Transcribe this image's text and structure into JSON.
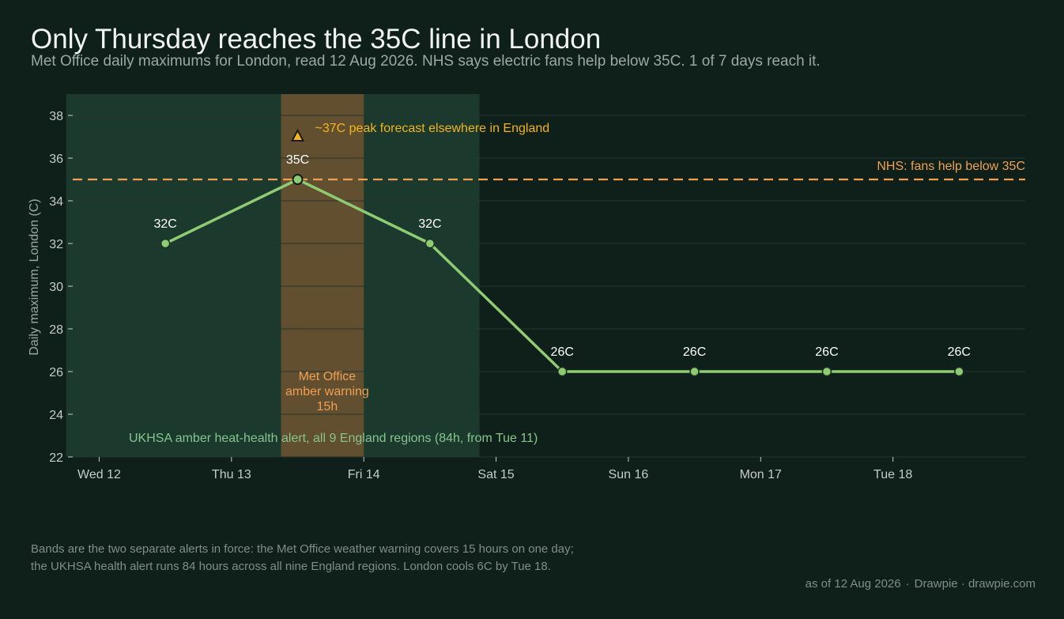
{
  "title": "Only Thursday reaches the 35C line in London",
  "subtitle": "Met Office daily maximums for London, read 12 Aug 2026. NHS says electric fans help below 35C. 1 of 7 days reach it.",
  "note_lines": [
    "Bands are the two separate alerts in force: the Met Office weather warning covers 15 hours on one day;",
    "the UKHSA health alert runs 84 hours across all nine England regions. London cools 6C by Tue 18."
  ],
  "footer": {
    "asof": "as of 12 Aug 2026",
    "separator": "·",
    "credit": "Drawpie · drawpie.com"
  },
  "colors": {
    "background": "#0f1f1a",
    "line": "#8fcb72",
    "threshold": "#f0a052",
    "amber_band": "#6a5230",
    "ukhsa_band": "#1b3a2d",
    "ukhsa_text": "#86c48f",
    "peak_marker": "#f4b41a",
    "peak_text": "#f4b41a",
    "grid": "#24352e",
    "tick_text": "#c4cdc8"
  },
  "chart_data": {
    "type": "line",
    "ylabel": "Daily maximum, London (C)",
    "ylim": [
      22,
      39
    ],
    "yticks": [
      22,
      24,
      26,
      28,
      30,
      32,
      34,
      36,
      38
    ],
    "x_ticks": [
      "Wed 12",
      "Thu 13",
      "Fri 14",
      "Sat 15",
      "Sun 16",
      "Mon 17",
      "Tue 18"
    ],
    "x_tick_days": [
      12,
      13,
      14,
      15,
      16,
      17,
      18
    ],
    "x_range_days": [
      11.8,
      19.0
    ],
    "grid": "horizontal",
    "series": [
      {
        "x_days": [
          12.5,
          13.5,
          14.5,
          15.5,
          16.5,
          17.5,
          18.5
        ],
        "values": [
          32,
          35,
          32,
          26,
          26,
          26,
          26
        ],
        "labels": [
          "32C",
          "35C",
          "32C",
          "26C",
          "26C",
          "26C",
          "26C"
        ]
      }
    ],
    "threshold": {
      "value": 35,
      "label": "NHS: fans help below 35C"
    },
    "peak_marker": {
      "x_day": 13.5,
      "value": 37,
      "label": "~37C peak forecast elsewhere in England"
    },
    "bands": [
      {
        "x_start_day": 11.75,
        "x_end_day": 14.875,
        "label": "UKHSA amber heat-health alert, all 9 England regions (84h, from Tue 11)"
      },
      {
        "x_start_day": 13.375,
        "x_end_day": 14.0,
        "label_lines": [
          "Met Office",
          "amber warning",
          "15h"
        ]
      }
    ]
  }
}
